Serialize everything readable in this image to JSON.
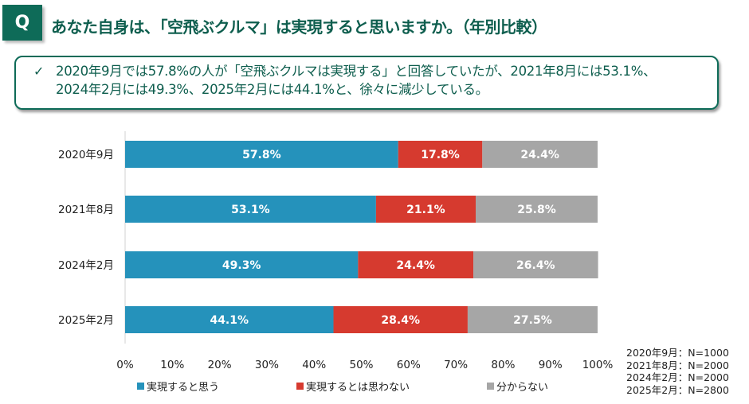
{
  "header": {
    "q_label": "Q",
    "title": "あなた自身は、「空飛ぶクルマ」は実現すると思いますか。（年別比較）"
  },
  "summary": {
    "icon": "check-icon",
    "check": "✓",
    "lines": [
      "2020年9月では57.8%の人が「空飛ぶクルマは実現する」と回答していたが、2021年8月には53.1%、",
      "2024年2月には49.3%、2025年2月には44.1%と、徐々に減少している。"
    ]
  },
  "chart_data": {
    "type": "bar",
    "orientation": "horizontal",
    "stacked": true,
    "categories": [
      "2020年9月",
      "2021年8月",
      "2024年2月",
      "2025年2月"
    ],
    "series": [
      {
        "name": "実現すると思う",
        "color": "#2592bb",
        "values": [
          57.8,
          53.1,
          49.3,
          44.1
        ],
        "labels": [
          "57.8%",
          "53.1%",
          "49.3%",
          "44.1%"
        ]
      },
      {
        "name": "実現するとは思わない",
        "color": "#d63a2f",
        "values": [
          17.8,
          21.1,
          24.4,
          28.4
        ],
        "labels": [
          "17.8%",
          "21.1%",
          "24.4%",
          "28.4%"
        ]
      },
      {
        "name": "分からない",
        "color": "#a6a6a6",
        "values": [
          24.4,
          25.8,
          26.4,
          27.5
        ],
        "labels": [
          "24.4%",
          "25.8%",
          "26.4%",
          "27.5%"
        ]
      }
    ],
    "xlim": [
      0,
      100
    ],
    "xticks": [
      "0%",
      "10%",
      "20%",
      "30%",
      "40%",
      "50%",
      "60%",
      "70%",
      "80%",
      "90%",
      "100%"
    ],
    "legend_position": "bottom",
    "grid": false
  },
  "sample_sizes": [
    "2020年9月：N=1000",
    "2021年8月：N=2000",
    "2024年2月：N=2000",
    "2025年2月：N=2800"
  ]
}
